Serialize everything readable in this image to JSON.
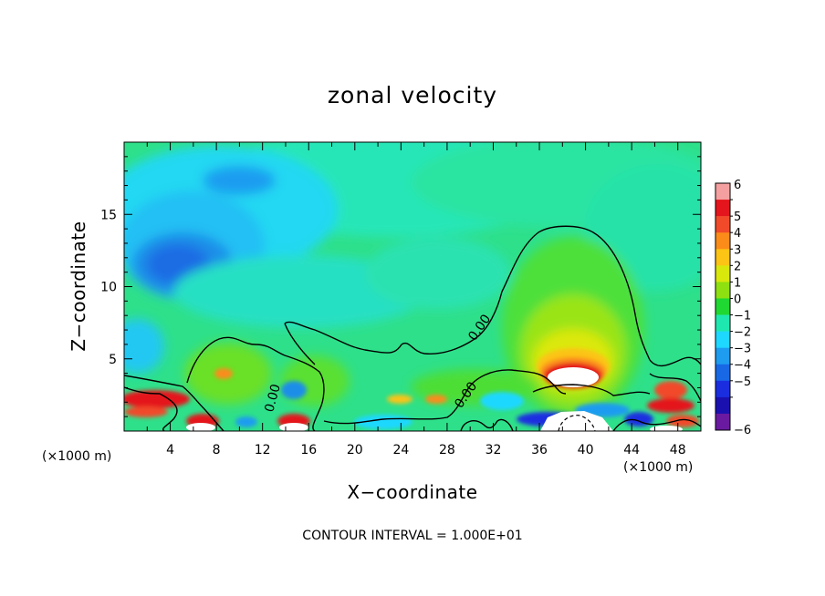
{
  "chart_data": {
    "type": "heatmap",
    "title": "zonal velocity",
    "xlabel": "X−coordinate",
    "ylabel": "Z−coordinate",
    "x_unit_label": "(×1000 m)",
    "x_unit_label_right": "(×1000 m)",
    "xlim": [
      0,
      50
    ],
    "ylim": [
      0,
      20
    ],
    "x_ticks": [
      4,
      8,
      12,
      16,
      20,
      24,
      28,
      32,
      36,
      40,
      44,
      48
    ],
    "y_ticks": [
      5,
      10,
      15
    ],
    "colorbar": {
      "levels": [
        6,
        5,
        4,
        3,
        2,
        1,
        0,
        -1,
        -2,
        -3,
        -4,
        -5,
        -6
      ],
      "labels": [
        "6",
        "5",
        "4",
        "3",
        "2",
        "1",
        "0",
        "−1",
        "−2",
        "−3",
        "−4",
        "−5",
        "−6"
      ],
      "colors": [
        "#f4a0a0",
        "#e4151d",
        "#f14a2a",
        "#fb8c1a",
        "#fcc414",
        "#d8e80c",
        "#8ee010",
        "#20d832",
        "#1ee8b0",
        "#1ed8ff",
        "#1e9cf0",
        "#1868e6",
        "#1a2ee0",
        "#1a10b0",
        "#6a1aa0"
      ]
    },
    "contour_label": "0.00",
    "footer": "CONTOUR INTERVAL = 1.000E+01",
    "features": [
      {
        "name": "upper-left negative core",
        "x": 6,
        "z": 12,
        "value": -3.5
      },
      {
        "name": "mid-upper negative patch",
        "x": 12,
        "z": 17.5,
        "value": -2.5
      },
      {
        "name": "right positive dome",
        "x": 39,
        "z": 7,
        "value": 1.5
      },
      {
        "name": "right strong positive core",
        "x": 39,
        "z": 3.6,
        "value": 6.5
      },
      {
        "name": "left low-level positive",
        "x": 3,
        "z": 2.3,
        "value": 5
      }
    ]
  }
}
